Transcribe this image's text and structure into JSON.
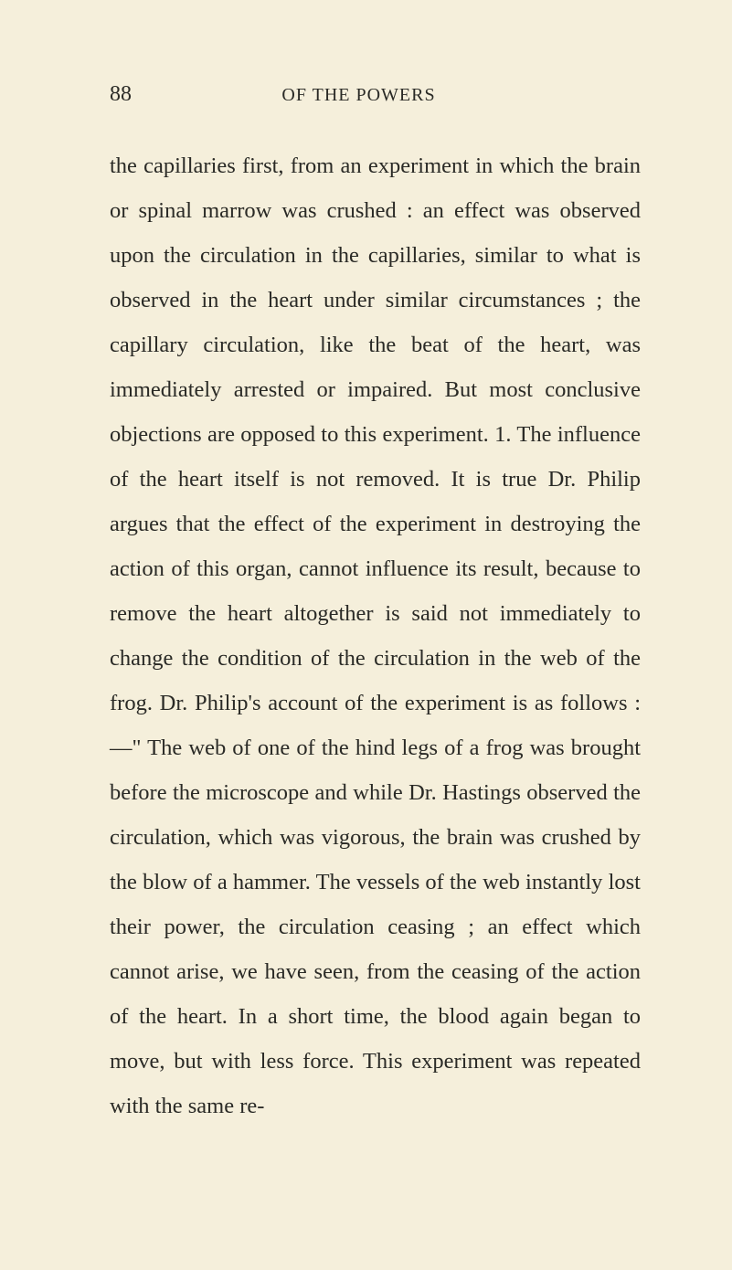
{
  "page": {
    "number": "88",
    "chapter_title": "OF THE POWERS",
    "body": "the capillaries first, from an experiment in which the brain or spinal marrow was crushed : an effect was observed upon the circulation in the capillaries, similar to what is observed in the heart under similar circumstances ; the capillary circulation, like the beat of the heart, was immediately arrested or impaired. But most conclusive objections are opposed to this experiment. 1. The influence of the heart itself is not removed. It is true Dr. Philip argues that the effect of the experiment in destroying the action of this organ, cannot influence its result, because to remove the heart altogether is said not immediately to change the condition of the circulation in the web of the frog. Dr. Philip's account of the experiment is as follows :—\" The web of one of the hind legs of a frog was brought before the microscope and while Dr. Hastings observed the circulation, which was vigorous, the brain was crushed by the blow of a hammer. The vessels of the web instantly lost their power, the circulation ceasing ; an effect which cannot arise, we have seen, from the ceasing of the action of the heart. In a short time, the blood again began to move, but with less force. This experiment was repeated with the same re-"
  },
  "style": {
    "background_color": "#f5efdb",
    "text_color": "#2a2a26",
    "body_fontsize": 24.5,
    "body_lineheight": 2.0,
    "header_fontsize": 20,
    "pagenum_fontsize": 24
  }
}
